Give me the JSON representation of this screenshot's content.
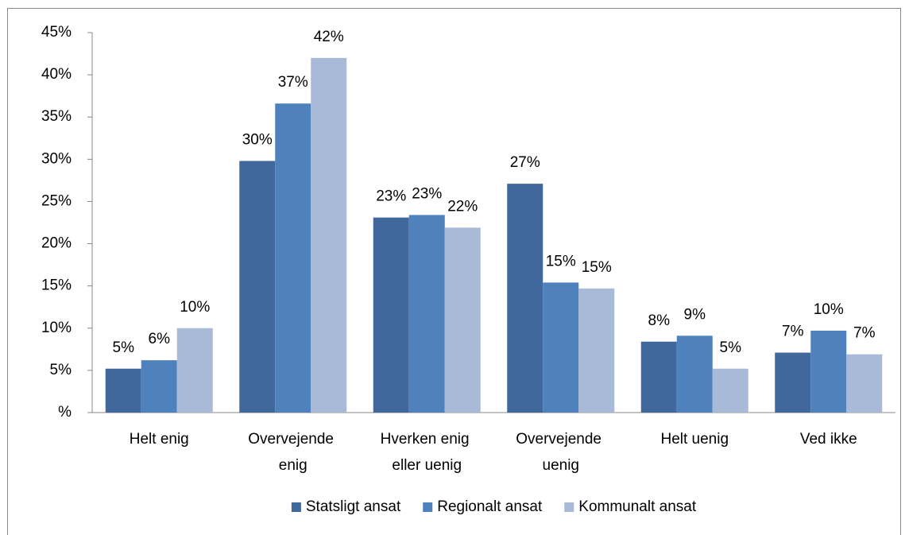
{
  "chart_data": {
    "type": "bar",
    "categories": [
      "Helt enig",
      "Overvejende enig",
      "Hverken enig eller uenig",
      "Overvejende uenig",
      "Helt uenig",
      "Ved ikke"
    ],
    "series": [
      {
        "name": "Statsligt ansat",
        "color": "#41689c",
        "values": [
          5.2,
          29.8,
          23.1,
          27.1,
          8.4,
          7.1
        ],
        "value_labels": [
          "5%",
          "30%",
          "23%",
          "27%",
          "8%",
          "7%"
        ]
      },
      {
        "name": "Regionalt ansat",
        "color": "#4f81bd",
        "values": [
          6.2,
          36.6,
          23.4,
          15.4,
          9.1,
          9.7
        ],
        "value_labels": [
          "6%",
          "37%",
          "23%",
          "15%",
          "9%",
          "10%"
        ]
      },
      {
        "name": "Kommunalt ansat",
        "color": "#a9bad9",
        "values": [
          10.0,
          42.0,
          21.9,
          14.7,
          5.2,
          6.9
        ],
        "value_labels": [
          "10%",
          "42%",
          "22%",
          "15%",
          "5%",
          "7%"
        ]
      }
    ],
    "ylim": [
      0,
      45
    ],
    "yticks": [
      {
        "value": 0,
        "label": "%"
      },
      {
        "value": 5,
        "label": "5%"
      },
      {
        "value": 10,
        "label": "10%"
      },
      {
        "value": 15,
        "label": "15%"
      },
      {
        "value": 20,
        "label": "20%"
      },
      {
        "value": 25,
        "label": "25%"
      },
      {
        "value": 30,
        "label": "30%"
      },
      {
        "value": 35,
        "label": "35%"
      },
      {
        "value": 40,
        "label": "40%"
      },
      {
        "value": 45,
        "label": "45%"
      }
    ],
    "legend": "bottom"
  }
}
